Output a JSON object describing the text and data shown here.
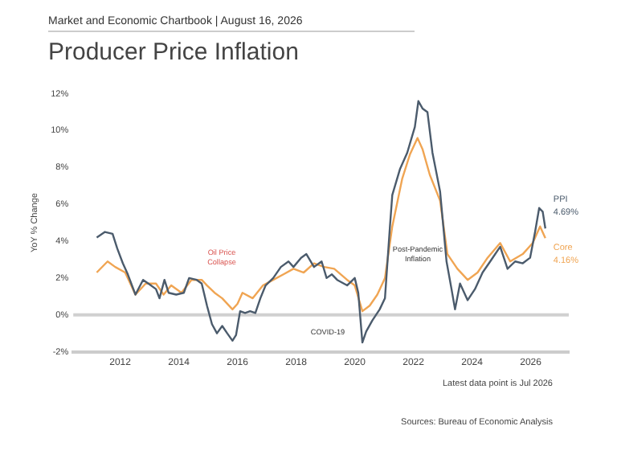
{
  "chart_data": {
    "type": "line",
    "title": "Producer Price Inflation",
    "subtitle": "Market and Economic Chartbook | August 16, 2026",
    "ylabel": "YoY % Change",
    "xlim": [
      2010.4,
      2027.3
    ],
    "xticks": [
      2012,
      2014,
      2016,
      2018,
      2020,
      2022,
      2024,
      2026
    ],
    "ylim": [
      -2,
      12
    ],
    "yticks": [
      {
        "value": -2,
        "label": "-2%"
      },
      {
        "value": 0,
        "label": "0%"
      },
      {
        "value": 2,
        "label": "2%"
      },
      {
        "value": 4,
        "label": "4%"
      },
      {
        "value": 6,
        "label": "6%"
      },
      {
        "value": 8,
        "label": "8%"
      },
      {
        "value": 10,
        "label": "10%"
      },
      {
        "value": 12,
        "label": "12%"
      }
    ],
    "grid": false,
    "legend": false,
    "marker": "none",
    "line_style": "solid",
    "ref_lines": [
      {
        "axis": "y",
        "value": 0,
        "color": "#d0d0d0"
      }
    ],
    "series": [
      {
        "name": "PPI",
        "color": "#4b5b6c",
        "x": [
          2011.2,
          2011.48,
          2011.74,
          2011.9,
          2012.09,
          2012.26,
          2012.52,
          2012.78,
          2012.96,
          2013.22,
          2013.34,
          2013.51,
          2013.65,
          2013.91,
          2014.17,
          2014.35,
          2014.61,
          2014.78,
          2014.96,
          2015.13,
          2015.3,
          2015.48,
          2015.65,
          2015.83,
          2015.95,
          2016.09,
          2016.26,
          2016.43,
          2016.61,
          2016.78,
          2016.96,
          2017.22,
          2017.48,
          2017.74,
          2017.91,
          2018.17,
          2018.35,
          2018.61,
          2018.87,
          2019.04,
          2019.22,
          2019.4,
          2019.74,
          2020.0,
          2020.12,
          2020.26,
          2020.39,
          2020.6,
          2020.85,
          2021.03,
          2021.2,
          2021.28,
          2021.54,
          2021.79,
          2022.05,
          2022.17,
          2022.31,
          2022.48,
          2022.65,
          2022.91,
          2023.13,
          2023.3,
          2023.42,
          2023.59,
          2023.85,
          2024.1,
          2024.36,
          2024.62,
          2024.96,
          2025.21,
          2025.47,
          2025.73,
          2025.98,
          2026.15,
          2026.29,
          2026.41,
          2026.5
        ],
        "values": [
          4.2,
          4.5,
          4.4,
          3.6,
          2.8,
          2.2,
          1.1,
          1.9,
          1.7,
          1.4,
          0.9,
          1.9,
          1.2,
          1.1,
          1.2,
          2.0,
          1.9,
          1.7,
          0.5,
          -0.5,
          -1.0,
          -0.6,
          -1.0,
          -1.4,
          -1.1,
          0.2,
          0.1,
          0.2,
          0.1,
          0.9,
          1.6,
          2.0,
          2.6,
          2.9,
          2.6,
          3.1,
          3.3,
          2.6,
          2.9,
          2.0,
          2.2,
          1.9,
          1.6,
          2.0,
          1.2,
          -1.5,
          -0.9,
          -0.3,
          0.3,
          0.9,
          4.8,
          6.5,
          7.9,
          8.8,
          10.2,
          11.6,
          11.2,
          11.0,
          8.8,
          6.7,
          2.9,
          1.4,
          0.3,
          1.7,
          0.8,
          1.4,
          2.3,
          2.9,
          3.7,
          2.5,
          2.9,
          2.8,
          3.1,
          4.5,
          5.8,
          5.6,
          4.69
        ],
        "value_labels": [
          null,
          null,
          null,
          null,
          null,
          null,
          null,
          null,
          null,
          null,
          null,
          null,
          null,
          null,
          null,
          null,
          null,
          null,
          null,
          null,
          null,
          null,
          null,
          null,
          null,
          null,
          null,
          null,
          null,
          null,
          null,
          null,
          null,
          null,
          null,
          null,
          null,
          null,
          null,
          null,
          null,
          null,
          null,
          null,
          null,
          null,
          null,
          null,
          null,
          null,
          null,
          null,
          null,
          null,
          null,
          null,
          null,
          null,
          null,
          null,
          null,
          null,
          null,
          null,
          null,
          null,
          null,
          null,
          null,
          null,
          null,
          null,
          null,
          null,
          null,
          null,
          "4.69%"
        ]
      },
      {
        "name": "Core",
        "color": "#f0a553",
        "x": [
          2011.2,
          2011.57,
          2011.83,
          2012.17,
          2012.52,
          2012.87,
          2013.22,
          2013.48,
          2013.74,
          2014.09,
          2014.43,
          2014.78,
          2014.96,
          2015.22,
          2015.48,
          2015.83,
          2016.0,
          2016.17,
          2016.52,
          2016.87,
          2017.22,
          2017.57,
          2017.91,
          2018.26,
          2018.61,
          2018.96,
          2019.3,
          2019.74,
          2020.0,
          2020.26,
          2020.51,
          2020.77,
          2021.03,
          2021.28,
          2021.62,
          2021.88,
          2022.14,
          2022.31,
          2022.56,
          2022.91,
          2023.16,
          2023.5,
          2023.85,
          2024.19,
          2024.53,
          2024.96,
          2025.3,
          2025.73,
          2026.07,
          2026.32,
          2026.5
        ],
        "values": [
          2.3,
          2.9,
          2.6,
          2.3,
          1.1,
          1.7,
          1.7,
          1.1,
          1.6,
          1.2,
          1.9,
          1.9,
          1.6,
          1.2,
          0.9,
          0.3,
          0.6,
          1.2,
          0.9,
          1.6,
          1.9,
          2.2,
          2.5,
          2.3,
          2.8,
          2.6,
          2.5,
          1.9,
          1.6,
          0.2,
          0.5,
          1.1,
          2.0,
          4.8,
          7.4,
          8.7,
          9.6,
          9.0,
          7.6,
          6.2,
          3.3,
          2.5,
          1.9,
          2.3,
          3.1,
          3.9,
          2.9,
          3.3,
          3.9,
          4.8,
          4.16
        ],
        "value_labels": [
          null,
          null,
          null,
          null,
          null,
          null,
          null,
          null,
          null,
          null,
          null,
          null,
          null,
          null,
          null,
          null,
          null,
          null,
          null,
          null,
          null,
          null,
          null,
          null,
          null,
          null,
          null,
          null,
          null,
          null,
          null,
          null,
          null,
          null,
          null,
          null,
          null,
          null,
          null,
          null,
          null,
          null,
          null,
          null,
          null,
          null,
          null,
          null,
          null,
          null,
          "4.16%"
        ]
      }
    ],
    "annotations": [
      "Oil Price Collapse",
      "COVID-19",
      "Post-Pandemic Inflation",
      "Latest data point is Jul 2026",
      "Sources: Bureau of Economic Analysis"
    ]
  }
}
